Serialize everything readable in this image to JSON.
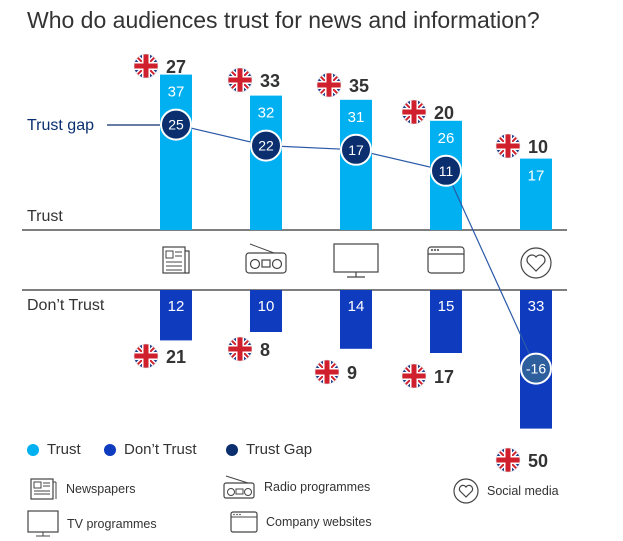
{
  "title": "Who do audiences trust for news and information?",
  "colors": {
    "trust": "#00b0f0",
    "dont_trust": "#0f3bbf",
    "gap": "#0a2e6e",
    "axis": "#333333"
  },
  "chart_data": {
    "type": "bar",
    "categories": [
      "Newspapers",
      "Radio programmes",
      "TV programmes",
      "Company websites",
      "Social media"
    ],
    "category_icons": [
      "newspaper-icon",
      "radio-icon",
      "tv-icon",
      "browser-icon",
      "heart-icon"
    ],
    "series": [
      {
        "name": "Trust",
        "values": [
          37,
          32,
          31,
          26,
          17
        ]
      },
      {
        "name": "Don’t Trust",
        "values": [
          12,
          10,
          14,
          15,
          33
        ]
      },
      {
        "name": "Trust Gap",
        "values": [
          25,
          22,
          17,
          11,
          -16
        ]
      }
    ],
    "uk_trust": [
      27,
      33,
      35,
      20,
      10
    ],
    "uk_dont_trust": [
      21,
      8,
      9,
      17,
      50
    ],
    "labels": {
      "trust_gap": "Trust gap",
      "trust": "Trust",
      "dont_trust": "Don’t Trust"
    },
    "legend_position": "bottom-left"
  },
  "legend": {
    "series": [
      "Trust",
      "Don’t Trust",
      "Trust Gap"
    ],
    "categories": [
      "Newspapers",
      "Radio programmes",
      "Social media",
      "TV programmes",
      "Company websites"
    ]
  }
}
